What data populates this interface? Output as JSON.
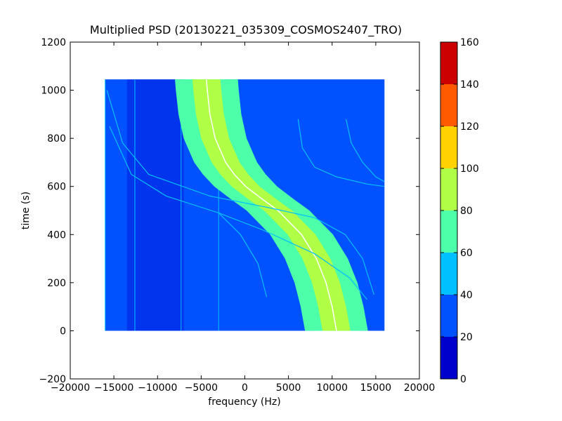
{
  "chart_data": {
    "type": "heatmap",
    "title": "Multiplied PSD (20130221_035309_COSMOS2407_TRO)",
    "xlabel": "frequency (Hz)",
    "ylabel": "time (s)",
    "xlim": [
      -20000,
      20000
    ],
    "ylim": [
      -200,
      1200
    ],
    "xticks": [
      "−20000",
      "−15000",
      "−10000",
      "−5000",
      "0",
      "5000",
      "10000",
      "15000",
      "20000"
    ],
    "xtick_values": [
      -20000,
      -15000,
      -10000,
      -5000,
      0,
      5000,
      10000,
      15000,
      20000
    ],
    "yticks": [
      "−200",
      "0",
      "200",
      "400",
      "600",
      "800",
      "1000",
      "1200"
    ],
    "ytick_values": [
      -200,
      0,
      200,
      400,
      600,
      800,
      1000,
      1200
    ],
    "data_extent": {
      "freq": [
        -16000,
        16000
      ],
      "time": [
        0,
        1045
      ]
    },
    "background_level": 30,
    "colorbar": {
      "min": 0,
      "max": 160,
      "ticks": [
        "0",
        "20",
        "40",
        "60",
        "80",
        "100",
        "120",
        "140",
        "160"
      ],
      "tick_values": [
        0,
        20,
        40,
        60,
        80,
        100,
        120,
        140,
        160
      ],
      "bands": [
        {
          "from": 0,
          "to": 20,
          "color": "#0000cc"
        },
        {
          "from": 20,
          "to": 40,
          "color": "#0051ff"
        },
        {
          "from": 40,
          "to": 60,
          "color": "#00c0ff"
        },
        {
          "from": 60,
          "to": 80,
          "color": "#4cffa8"
        },
        {
          "from": 80,
          "to": 100,
          "color": "#b0ff46"
        },
        {
          "from": 100,
          "to": 120,
          "color": "#ffd200"
        },
        {
          "from": 120,
          "to": 140,
          "color": "#ff5a00"
        },
        {
          "from": 140,
          "to": 160,
          "color": "#cc0000"
        }
      ]
    },
    "main_track": {
      "center_freq_at_time": [
        [
          0,
          10500
        ],
        [
          100,
          10000
        ],
        [
          200,
          9300
        ],
        [
          300,
          8200
        ],
        [
          400,
          6500
        ],
        [
          500,
          3800
        ],
        [
          550,
          1900
        ],
        [
          600,
          100
        ],
        [
          650,
          -1200
        ],
        [
          700,
          -2200
        ],
        [
          800,
          -3400
        ],
        [
          900,
          -4000
        ],
        [
          1000,
          -4300
        ],
        [
          1045,
          -4400
        ]
      ],
      "half_widths_hz": [
        {
          "level": 60,
          "half_width": 3600
        },
        {
          "level": 70,
          "half_width": 2600
        },
        {
          "level": 85,
          "half_width": 1600
        }
      ]
    },
    "noise_band": {
      "freq": [
        -13500,
        -7000
      ],
      "level": 15
    },
    "vertical_lines_hz": [
      -16000,
      -12600,
      -7300,
      -3000
    ],
    "minor_tracks": [
      {
        "level": 45,
        "points": [
          [
            -15800,
            1000
          ],
          [
            -14000,
            780
          ],
          [
            -11000,
            650
          ],
          [
            -4000,
            560
          ],
          [
            3000,
            510
          ],
          [
            8000,
            470
          ],
          [
            11500,
            400
          ],
          [
            13500,
            300
          ],
          [
            14800,
            150
          ]
        ]
      },
      {
        "level": 45,
        "points": [
          [
            -15500,
            850
          ],
          [
            -13000,
            650
          ],
          [
            -9000,
            560
          ],
          [
            -3000,
            490
          ],
          [
            2000,
            420
          ],
          [
            8000,
            320
          ],
          [
            12000,
            220
          ],
          [
            14000,
            130
          ]
        ]
      },
      {
        "level": 45,
        "points": [
          [
            -3000,
            490
          ],
          [
            -500,
            400
          ],
          [
            1500,
            280
          ],
          [
            2500,
            140
          ]
        ]
      },
      {
        "level": 45,
        "points": [
          [
            6100,
            880
          ],
          [
            6600,
            760
          ],
          [
            8000,
            680
          ],
          [
            10500,
            640
          ],
          [
            14000,
            610
          ],
          [
            16000,
            600
          ]
        ]
      },
      {
        "level": 45,
        "points": [
          [
            11600,
            880
          ],
          [
            12200,
            780
          ],
          [
            13500,
            700
          ],
          [
            15000,
            640
          ],
          [
            16000,
            620
          ]
        ]
      }
    ]
  }
}
